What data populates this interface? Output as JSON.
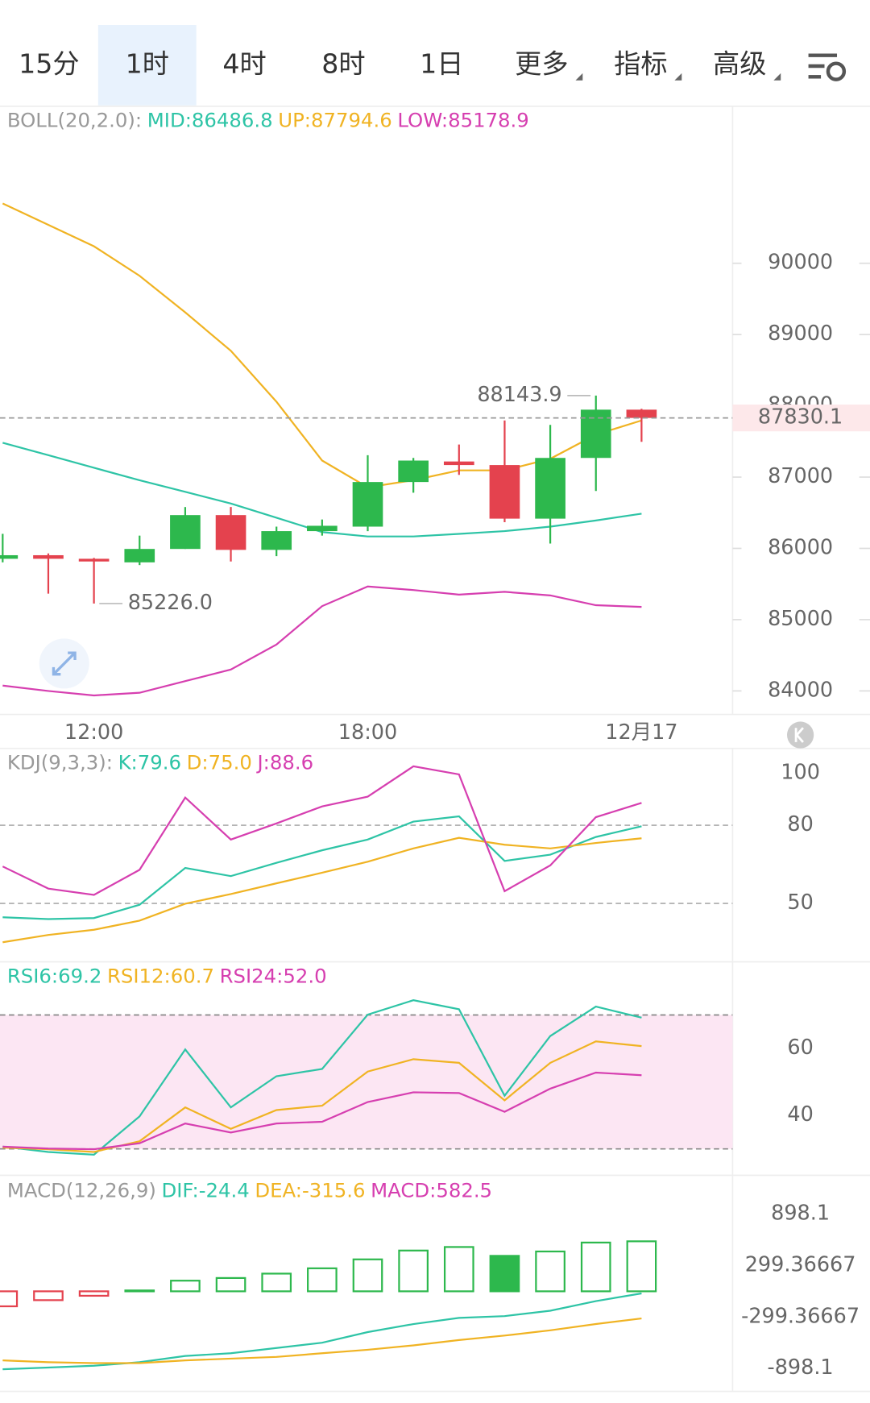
{
  "tabs": [
    "15分",
    "1时",
    "4时",
    "8时",
    "1日",
    "更多",
    "指标",
    "高级"
  ],
  "active_tab": "1时",
  "chart": {
    "categories": [
      null,
      null,
      "12:00",
      null,
      null,
      null,
      null,
      null,
      "18:00",
      null,
      null,
      null,
      null,
      null,
      "12月17"
    ],
    "candles": {
      "open": [
        85854,
        85904,
        85854,
        85804,
        85992,
        86467,
        85979,
        86242,
        86305,
        86931,
        87219,
        87169,
        86417,
        87269,
        87946
      ],
      "high": [
        86204,
        85929,
        85866,
        86179,
        86580,
        86580,
        86305,
        86405,
        87307,
        87269,
        87457,
        87795,
        87733,
        88143.9,
        87958
      ],
      "low": [
        85804,
        85365,
        85226,
        85766,
        85992,
        85816,
        85891,
        86179,
        86242,
        86781,
        87031,
        86367,
        86067,
        86806,
        87495
      ],
      "close": [
        85904,
        85854,
        85816,
        85992,
        86467,
        85979,
        86242,
        86317,
        86931,
        87232,
        87169,
        86417,
        87269,
        87946,
        87830.1
      ]
    },
    "up_color": "#2db84d",
    "down_color": "#e4424e",
    "legend_title": "BOLL(20,2.0):",
    "series": [
      {
        "label": "MID:86486.8",
        "color": "#2ec4a6",
        "values": [
          87482,
          87307,
          87131,
          86956,
          86793,
          86630,
          86430,
          86229,
          86167,
          86167,
          86204,
          86242,
          86305,
          86392,
          86486.8
        ]
      },
      {
        "label": "UP:87794.6",
        "color": "#f0b323",
        "values": [
          90839,
          90539,
          90238,
          89825,
          89311,
          88772,
          88058,
          87232,
          86856,
          86956,
          87094,
          87094,
          87257,
          87595,
          87794.6
        ]
      },
      {
        "label": "LOW:85178.9",
        "color": "#d63fb0",
        "values": [
          84075,
          84000,
          83937,
          83975,
          84137,
          84300,
          84651,
          85190,
          85465,
          85415,
          85352,
          85390,
          85340,
          85202,
          85178.9
        ]
      }
    ],
    "ylim": [
      83670,
      92190
    ],
    "yticks": [
      84000,
      85000,
      86000,
      87000,
      88000,
      89000,
      90000
    ],
    "high_label": "88143.9",
    "low_label": "85226.0",
    "last_price_label": "87830.1"
  },
  "kdj": {
    "legend_title": "KDJ(9,3,3):",
    "ylim": [
      27.6,
      108.8
    ],
    "yticks": [
      100,
      80,
      50
    ],
    "reference_lines": [
      80,
      50
    ],
    "series": [
      {
        "label": "K:79.6",
        "color": "#2ec4a6",
        "values": [
          44.7,
          44.0,
          44.4,
          49.5,
          63.6,
          60.5,
          65.6,
          70.4,
          74.5,
          81.4,
          83.4,
          66.3,
          68.7,
          75.5,
          79.6
        ]
      },
      {
        "label": "D:75.0",
        "color": "#f0b323",
        "values": [
          35.1,
          37.9,
          39.9,
          43.4,
          49.9,
          53.6,
          57.7,
          61.8,
          66.0,
          71.1,
          75.2,
          72.5,
          71.1,
          73.2,
          75.0
        ]
      },
      {
        "label": "J:88.6",
        "color": "#d63fb0",
        "values": [
          64.2,
          55.7,
          53.3,
          62.9,
          90.6,
          74.5,
          80.7,
          87.2,
          91.0,
          102.6,
          99.5,
          54.7,
          64.6,
          83.1,
          88.6
        ]
      }
    ]
  },
  "rsi": {
    "ylim": [
      22.4,
      85.6
    ],
    "yticks": [
      60,
      40
    ],
    "band": [
      30,
      70
    ],
    "band_color": "#fce6f3",
    "series": [
      {
        "label": "RSI6:69.2",
        "color": "#2ec4a6",
        "values": [
          30.7,
          29.1,
          28.3,
          39.7,
          59.7,
          42.4,
          51.7,
          53.9,
          70.1,
          74.4,
          71.7,
          45.9,
          63.7,
          72.5,
          69.2
        ]
      },
      {
        "label": "RSI12:60.7",
        "color": "#f0b323",
        "values": [
          30.4,
          29.9,
          29.1,
          32.3,
          42.4,
          36.0,
          41.6,
          42.9,
          53.1,
          56.8,
          55.7,
          44.5,
          55.7,
          62.1,
          60.7
        ]
      },
      {
        "label": "RSI24:52.0",
        "color": "#d63fb0",
        "values": [
          30.7,
          30.1,
          29.9,
          31.7,
          37.6,
          34.9,
          37.6,
          38.1,
          44.0,
          46.9,
          46.7,
          41.1,
          48.0,
          52.8,
          52.0
        ]
      }
    ]
  },
  "macd": {
    "legend_title": "MACD(12,26,9)",
    "ylim": [
      -1166,
      1331
    ],
    "yticks": [
      898.1,
      299.36667,
      -299.36667,
      -898.1
    ],
    "series": [
      {
        "label": "DIF:-24.4",
        "color": "#2ec4a6",
        "values": [
          -908,
          -888,
          -867,
          -826,
          -753,
          -722,
          -660,
          -599,
          -475,
          -382,
          -310,
          -289,
          -227,
          -114,
          -24.4
        ]
      },
      {
        "label": "DEA:-315.6",
        "color": "#f0b323",
        "values": [
          -805,
          -826,
          -836,
          -836,
          -805,
          -784,
          -764,
          -722,
          -681,
          -630,
          -568,
          -516,
          -454,
          -382,
          -315.6
        ]
      }
    ],
    "histogram": {
      "label": "MACD:582.5",
      "color": "#d63fb0",
      "up_color": "#2db84d",
      "down_color": "#e4424e",
      "values": [
        -175,
        -103,
        -52,
        10,
        124,
        155,
        206,
        268,
        372,
        475,
        516,
        413,
        464,
        568,
        582.5
      ]
    }
  }
}
